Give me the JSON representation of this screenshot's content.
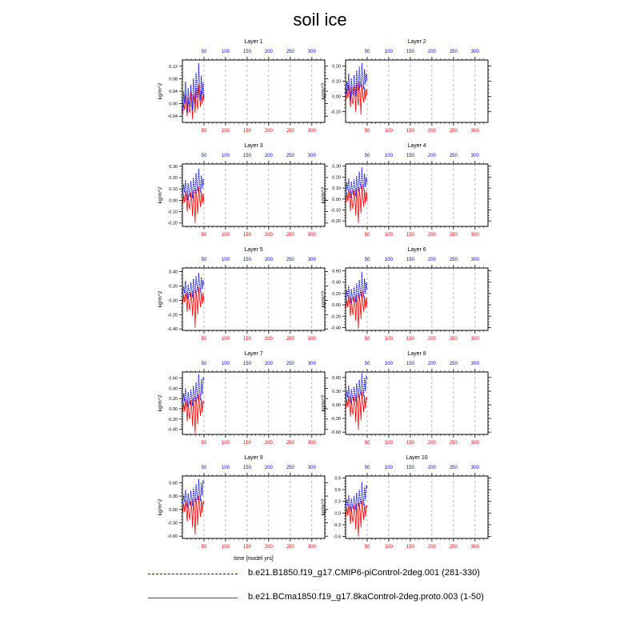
{
  "title": "soil ice",
  "chart_data": {
    "type": "line",
    "xlabel": "time [model yrs]",
    "ylabel": "kg/m^2",
    "xlim": [
      0,
      330
    ],
    "x_ticks": [
      50,
      100,
      150,
      200,
      250,
      300
    ],
    "series": [
      {
        "name": "b.e21.B1850.f19_g17.CMIP6-piControl-2deg.001 (281-330)",
        "color": "#0000ff",
        "style": "dashed",
        "axis": "top"
      },
      {
        "name": "b.e21.BCma1850.f19_g17.8kaControl-2deg.proto.003 (1-50)",
        "color": "#ff0000",
        "style": "solid",
        "axis": "bottom"
      }
    ],
    "panels": [
      {
        "label": "Layer 1",
        "yticks": [
          -0.04,
          0.0,
          0.04,
          0.08,
          0.12
        ],
        "yticklabels": [
          "-0.04",
          "0.00",
          "0.04",
          "0.08",
          "0.12"
        ],
        "ylim": [
          -0.06,
          0.14
        ],
        "blue": [
          -0.02,
          0.04,
          0.0,
          0.07,
          0.02,
          -0.03,
          0.05,
          0.01,
          -0.01,
          0.06,
          0.03,
          -0.02,
          0.08,
          0.04,
          0.0,
          0.1,
          0.05,
          0.02,
          0.13,
          0.06,
          0.01,
          0.09,
          0.03,
          0.07,
          0.02
        ],
        "red": [
          -0.03,
          0.0,
          -0.02,
          0.03,
          -0.01,
          -0.04,
          0.02,
          -0.02,
          -0.03,
          0.04,
          0.0,
          -0.05,
          0.03,
          0.01,
          -0.03,
          0.05,
          0.01,
          -0.02,
          0.06,
          0.02,
          -0.01,
          0.04,
          0.0,
          0.03,
          0.01
        ]
      },
      {
        "label": "Layer 2",
        "yticks": [
          -0.1,
          0.0,
          0.1,
          0.2
        ],
        "yticklabels": [
          "-0.10",
          "0.00",
          "0.10",
          "0.20"
        ],
        "ylim": [
          -0.17,
          0.24
        ],
        "blue": [
          0.02,
          0.1,
          0.04,
          0.15,
          0.06,
          -0.02,
          0.12,
          0.05,
          0.01,
          0.14,
          0.08,
          0.0,
          0.17,
          0.09,
          0.04,
          0.2,
          0.1,
          0.06,
          0.22,
          0.12,
          0.05,
          0.18,
          0.08,
          0.15,
          0.1
        ],
        "red": [
          -0.02,
          0.05,
          -0.01,
          0.08,
          0.01,
          -0.07,
          0.06,
          -0.03,
          -0.05,
          0.07,
          0.02,
          -0.1,
          0.09,
          0.0,
          -0.06,
          0.1,
          0.02,
          -0.12,
          0.08,
          0.01,
          -0.04,
          0.06,
          -0.02,
          0.05,
          0.01
        ]
      },
      {
        "label": "Layer 3",
        "yticks": [
          -0.2,
          -0.1,
          0.0,
          0.1,
          0.2,
          0.3
        ],
        "yticklabels": [
          "-0.20",
          "-0.10",
          "0.00",
          "0.10",
          "0.20",
          "0.30"
        ],
        "ylim": [
          -0.23,
          0.32
        ],
        "blue": [
          0.05,
          0.14,
          0.07,
          0.18,
          0.09,
          0.0,
          0.15,
          0.08,
          0.03,
          0.17,
          0.1,
          0.02,
          0.2,
          0.11,
          0.06,
          0.24,
          0.13,
          0.08,
          0.28,
          0.15,
          0.07,
          0.22,
          0.1,
          0.19,
          0.13
        ],
        "red": [
          -0.03,
          0.05,
          -0.02,
          0.08,
          0.0,
          -0.1,
          0.06,
          -0.04,
          -0.08,
          0.07,
          0.01,
          -0.14,
          0.09,
          -0.02,
          -0.2,
          0.1,
          0.01,
          -0.12,
          0.12,
          0.02,
          -0.06,
          0.08,
          -0.03,
          0.06,
          -0.02
        ]
      },
      {
        "label": "Layer 4",
        "yticks": [
          -0.2,
          -0.1,
          0.0,
          0.1,
          0.2,
          0.3
        ],
        "yticklabels": [
          "-0.20",
          "-0.10",
          "0.00",
          "0.10",
          "0.20",
          "0.30"
        ],
        "ylim": [
          -0.25,
          0.32
        ],
        "blue": [
          0.06,
          0.15,
          0.08,
          0.19,
          0.1,
          0.01,
          0.16,
          0.09,
          0.04,
          0.18,
          0.11,
          0.03,
          0.21,
          0.12,
          0.07,
          0.25,
          0.14,
          0.09,
          0.29,
          0.16,
          0.08,
          0.23,
          0.11,
          0.2,
          0.14
        ],
        "red": [
          -0.03,
          0.06,
          -0.02,
          0.09,
          0.0,
          -0.11,
          0.07,
          -0.05,
          -0.09,
          0.08,
          0.01,
          -0.15,
          0.1,
          -0.03,
          -0.22,
          0.11,
          0.01,
          -0.13,
          0.13,
          0.02,
          -0.07,
          0.09,
          -0.04,
          0.07,
          -0.02
        ]
      },
      {
        "label": "Layer 5",
        "yticks": [
          -0.4,
          -0.2,
          0.0,
          0.2,
          0.4
        ],
        "yticklabels": [
          "-0.40",
          "-0.20",
          "0.00",
          "0.20",
          "0.40"
        ],
        "ylim": [
          -0.42,
          0.45
        ],
        "blue": [
          0.08,
          0.2,
          0.1,
          0.27,
          0.13,
          0.02,
          0.22,
          0.12,
          0.05,
          0.25,
          0.15,
          0.04,
          0.3,
          0.17,
          0.1,
          0.34,
          0.2,
          0.12,
          0.38,
          0.22,
          0.11,
          0.32,
          0.16,
          0.28,
          0.2
        ],
        "red": [
          -0.04,
          0.08,
          -0.03,
          0.12,
          0.0,
          -0.16,
          0.1,
          -0.06,
          -0.14,
          0.11,
          0.02,
          -0.22,
          0.14,
          -0.04,
          -0.38,
          0.15,
          0.02,
          -0.2,
          0.18,
          0.03,
          -0.1,
          0.12,
          -0.05,
          0.1,
          -0.03
        ]
      },
      {
        "label": "Layer 6",
        "yticks": [
          -0.4,
          -0.2,
          0.0,
          0.2,
          0.4,
          0.6
        ],
        "yticklabels": [
          "-0.40",
          "-0.20",
          "0.00",
          "0.20",
          "0.40",
          "0.60"
        ],
        "ylim": [
          -0.45,
          0.65
        ],
        "blue": [
          0.1,
          0.26,
          0.13,
          0.34,
          0.17,
          0.03,
          0.28,
          0.15,
          0.07,
          0.32,
          0.19,
          0.05,
          0.38,
          0.22,
          0.12,
          0.44,
          0.25,
          0.15,
          0.58,
          0.28,
          0.14,
          0.46,
          0.2,
          0.4,
          0.26
        ],
        "red": [
          -0.05,
          0.1,
          -0.04,
          0.16,
          0.0,
          -0.2,
          0.13,
          -0.08,
          -0.18,
          0.14,
          0.02,
          -0.28,
          0.18,
          -0.05,
          -0.42,
          0.2,
          0.03,
          -0.25,
          0.24,
          0.04,
          -0.12,
          0.16,
          -0.06,
          0.13,
          -0.04
        ]
      },
      {
        "label": "Layer 7",
        "yticks": [
          -0.4,
          -0.2,
          0.0,
          0.2,
          0.4,
          0.6
        ],
        "yticklabels": [
          "-0.40",
          "-0.20",
          "0.00",
          "0.20",
          "0.40",
          "0.60"
        ],
        "ylim": [
          -0.5,
          0.72
        ],
        "blue": [
          0.12,
          0.3,
          0.15,
          0.4,
          0.2,
          0.04,
          0.33,
          0.18,
          0.08,
          0.38,
          0.22,
          0.06,
          0.45,
          0.26,
          0.14,
          0.52,
          0.3,
          0.18,
          0.68,
          0.34,
          0.17,
          0.58,
          0.28,
          0.62,
          0.55
        ],
        "red": [
          -0.06,
          0.12,
          -0.05,
          0.19,
          0.0,
          -0.24,
          0.15,
          -0.1,
          -0.2,
          0.17,
          0.03,
          -0.34,
          0.22,
          -0.06,
          -0.48,
          0.24,
          0.03,
          -0.3,
          0.28,
          0.05,
          -0.14,
          0.2,
          -0.07,
          0.16,
          0.1
        ]
      },
      {
        "label": "Layer 8",
        "yticks": [
          -0.6,
          -0.3,
          0.0,
          0.3,
          0.6
        ],
        "yticklabels": [
          "-0.60",
          "-0.30",
          "0.00",
          "0.30",
          "0.60"
        ],
        "ylim": [
          -0.65,
          0.72
        ],
        "blue": [
          0.13,
          0.32,
          0.16,
          0.42,
          0.21,
          0.04,
          0.35,
          0.19,
          0.09,
          0.4,
          0.24,
          0.07,
          0.47,
          0.28,
          0.15,
          0.55,
          0.32,
          0.2,
          0.7,
          0.36,
          0.18,
          0.6,
          0.3,
          0.64,
          0.56
        ],
        "red": [
          -0.07,
          0.13,
          -0.05,
          0.2,
          0.0,
          -0.26,
          0.16,
          -0.11,
          -0.22,
          0.18,
          0.03,
          -0.38,
          0.23,
          -0.07,
          -0.55,
          0.25,
          0.03,
          -0.34,
          0.3,
          0.05,
          -0.16,
          0.21,
          -0.08,
          0.17,
          0.11
        ]
      },
      {
        "label": "Layer 9",
        "yticks": [
          -0.6,
          -0.3,
          0.0,
          0.3,
          0.6
        ],
        "yticklabels": [
          "-0.60",
          "-0.30",
          "0.00",
          "0.30",
          "0.60"
        ],
        "ylim": [
          -0.65,
          0.75
        ],
        "blue": [
          0.14,
          0.33,
          0.17,
          0.44,
          0.22,
          0.05,
          0.36,
          0.2,
          0.1,
          0.42,
          0.25,
          0.08,
          0.49,
          0.29,
          0.16,
          0.56,
          0.33,
          0.21,
          0.68,
          0.37,
          0.19,
          0.61,
          0.31,
          0.66,
          0.58
        ],
        "red": [
          -0.07,
          0.14,
          -0.06,
          0.21,
          0.0,
          -0.27,
          0.17,
          -0.12,
          -0.23,
          0.19,
          0.04,
          -0.4,
          0.24,
          -0.07,
          -0.57,
          0.26,
          0.04,
          -0.35,
          0.31,
          0.06,
          -0.17,
          0.22,
          -0.08,
          0.18,
          0.12
        ]
      },
      {
        "label": "Layer 10",
        "yticks": [
          -0.6,
          -0.3,
          0.0,
          0.3,
          0.6,
          0.9
        ],
        "yticklabels": [
          "-0.6",
          "-0.3",
          "0.0",
          "0.3",
          "0.6",
          "0.9"
        ],
        "ylim": [
          -0.65,
          0.95
        ],
        "blue": [
          0.15,
          0.35,
          0.18,
          0.46,
          0.23,
          0.05,
          0.38,
          0.21,
          0.1,
          0.44,
          0.27,
          0.08,
          0.52,
          0.31,
          0.17,
          0.6,
          0.35,
          0.22,
          0.8,
          0.4,
          0.2,
          0.66,
          0.33,
          0.72,
          0.62
        ],
        "red": [
          -0.08,
          0.15,
          -0.06,
          0.22,
          0.0,
          -0.28,
          0.18,
          -0.12,
          -0.24,
          0.2,
          0.04,
          -0.42,
          0.25,
          -0.08,
          -0.6,
          0.28,
          0.04,
          -0.37,
          0.33,
          0.06,
          -0.18,
          0.24,
          -0.09,
          0.2,
          0.13
        ]
      }
    ]
  },
  "legend": {
    "blue_label": "b.e21.B1850.f19_g17.CMIP6-piControl-2deg.001 (281-330)",
    "red_label": "b.e21.BCma1850.f19_g17.8kaControl-2deg.proto.003 (1-50)"
  }
}
